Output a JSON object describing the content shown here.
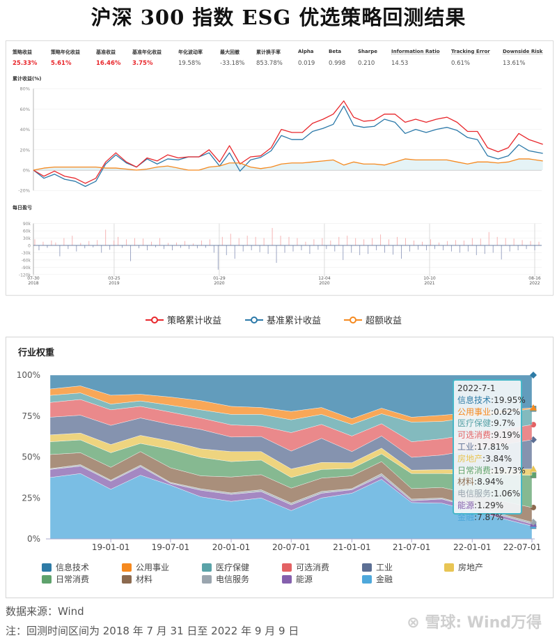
{
  "title": "沪深 300 指数 ESG 优选策略回测结果",
  "metrics": [
    {
      "label": "策略收益",
      "value": "25.33%",
      "highlight": true
    },
    {
      "label": "策略年化收益",
      "value": "5.61%",
      "highlight": true
    },
    {
      "label": "基准收益",
      "value": "16.46%",
      "highlight": true
    },
    {
      "label": "基准年化收益",
      "value": "3.75%",
      "highlight": true
    },
    {
      "label": "年化波动率",
      "value": "19.58%",
      "highlight": false
    },
    {
      "label": "最大回撤",
      "value": "-33.18%",
      "highlight": false
    },
    {
      "label": "累计换手率",
      "value": "853.78%",
      "highlight": false
    },
    {
      "label": "Alpha",
      "value": "0.019",
      "highlight": false
    },
    {
      "label": "Beta",
      "value": "0.998",
      "highlight": false
    },
    {
      "label": "Sharpe",
      "value": "0.210",
      "highlight": false
    },
    {
      "label": "Information Ratio",
      "value": "14.53",
      "highlight": false
    },
    {
      "label": "Tracking Error",
      "value": "0.61%",
      "highlight": false
    },
    {
      "label": "Downside Risk",
      "value": "13.61%",
      "highlight": false
    }
  ],
  "legend": [
    {
      "label": "策略累计收益",
      "color": "#e8262b"
    },
    {
      "label": "基准累计收益",
      "color": "#2a78a8"
    },
    {
      "label": "超额收益",
      "color": "#f5891f"
    }
  ],
  "chart_data": [
    {
      "type": "line",
      "title": "累计收益(%)",
      "ylim": [
        -20,
        80
      ],
      "yticks": [
        "80%",
        "60%",
        "40%",
        "20%",
        "0%",
        "-20%"
      ],
      "ytick_values": [
        80,
        60,
        40,
        20,
        0,
        -20
      ],
      "grid": true,
      "x": [
        "2018-07-30",
        "2018-08-30",
        "2018-09-30",
        "2018-10-30",
        "2018-11-30",
        "2018-12-30",
        "2019-01-30",
        "2019-02-28",
        "2019-03-30",
        "2019-04-30",
        "2019-05-30",
        "2019-06-30",
        "2019-07-30",
        "2019-08-30",
        "2019-09-30",
        "2019-10-30",
        "2019-11-30",
        "2019-12-30",
        "2020-01-30",
        "2020-02-28",
        "2020-03-30",
        "2020-04-30",
        "2020-05-30",
        "2020-06-30",
        "2020-07-30",
        "2020-08-30",
        "2020-09-30",
        "2020-10-30",
        "2020-11-30",
        "2020-12-30",
        "2021-01-30",
        "2021-02-28",
        "2021-03-30",
        "2021-04-30",
        "2021-05-30",
        "2021-06-30",
        "2021-07-30",
        "2021-08-30",
        "2021-09-30",
        "2021-10-30",
        "2021-11-30",
        "2021-12-30",
        "2022-01-30",
        "2022-02-28",
        "2022-03-30",
        "2022-04-30",
        "2022-05-30",
        "2022-06-30",
        "2022-07-30",
        "2022-09-09"
      ],
      "series": [
        {
          "name": "策略累计收益",
          "color": "#e8262b",
          "values": [
            0,
            -6,
            -1,
            -6,
            -8,
            -13,
            -8,
            8,
            17,
            8,
            3,
            12,
            9,
            15,
            12,
            13,
            13,
            20,
            8,
            24,
            6,
            13,
            14,
            22,
            40,
            37,
            37,
            46,
            50,
            55,
            68,
            52,
            48,
            49,
            55,
            55,
            47,
            50,
            47,
            50,
            52,
            47,
            38,
            38,
            22,
            18,
            22,
            36,
            30,
            25.33
          ]
        },
        {
          "name": "基准累计收益",
          "color": "#2a78a8",
          "values": [
            0,
            -8,
            -4,
            -9,
            -11,
            -16,
            -11,
            6,
            15,
            7,
            3,
            11,
            6,
            11,
            10,
            13,
            13,
            17,
            4,
            17,
            -1,
            10,
            12.5,
            19,
            34,
            30,
            30,
            38,
            41,
            45,
            63,
            44,
            42,
            43,
            50,
            47,
            36,
            40,
            37,
            40,
            42,
            39,
            32,
            30,
            14,
            11,
            14,
            25,
            19,
            16.46
          ]
        },
        {
          "name": "超额收益",
          "color": "#f5891f",
          "values": [
            0,
            2,
            3,
            3,
            3,
            3,
            3,
            2,
            2,
            1,
            0,
            1,
            3,
            4,
            2,
            0,
            0,
            3,
            4,
            7,
            7,
            3,
            1.5,
            3,
            6,
            7,
            7,
            8,
            9,
            10,
            5,
            8,
            6,
            6,
            5,
            8,
            11,
            10,
            10,
            10,
            10,
            8,
            6,
            8,
            8,
            7,
            8,
            11,
            11,
            9
          ]
        }
      ]
    },
    {
      "type": "bar",
      "title": "每日盈亏",
      "ylim": [
        -120,
        90
      ],
      "yticks": [
        "90k",
        "60k",
        "30k",
        "0",
        "-30k",
        "-60k",
        "-90k",
        "-120k"
      ],
      "ytick_values": [
        90,
        60,
        30,
        0,
        -30,
        -60,
        -90,
        -120
      ],
      "xticks": [
        {
          "date": "2018-07-30",
          "md": "07-30",
          "year": "2018"
        },
        {
          "date": "2019-03-25",
          "md": "03-25",
          "year": "2019"
        },
        {
          "date": "2020-01-29",
          "md": "01-29",
          "year": "2020"
        },
        {
          "date": "2020-12-04",
          "md": "12-04",
          "year": "2020"
        },
        {
          "date": "2021-10-10",
          "md": "10-10",
          "year": "2021"
        },
        {
          "date": "2022-08-16",
          "md": "08-16",
          "year": "2022"
        }
      ],
      "positive_color": "#f3a3a3",
      "negative_color": "#8590b6",
      "values_k": [
        25,
        -20,
        15,
        -10,
        20,
        12,
        -45,
        30,
        -15,
        40,
        -25,
        10,
        -12,
        18,
        -8,
        22,
        -30,
        65,
        -18,
        20,
        35,
        -10,
        25,
        -65,
        30,
        -12,
        28,
        -20,
        15,
        -8,
        30,
        -15,
        10,
        -20,
        12,
        -10,
        18,
        -15,
        8,
        -12,
        20,
        -10,
        25,
        -30,
        -100,
        35,
        -40,
        48,
        -55,
        30,
        -25,
        40,
        -20,
        35,
        -28,
        30,
        -35,
        72,
        -72,
        40,
        -30,
        35,
        -25,
        30,
        -20,
        15,
        -35,
        25,
        -18,
        30,
        -15,
        20,
        -25,
        35,
        -60,
        40,
        -30,
        30,
        -40,
        25,
        -35,
        30,
        -20,
        45,
        -30,
        25,
        -38,
        35,
        -55,
        30,
        -25,
        20,
        -18,
        15,
        -20,
        25,
        -15,
        12,
        -20,
        18,
        -25,
        22,
        -30,
        20,
        -25,
        30,
        -40,
        28,
        -35,
        55,
        -30,
        35,
        -58,
        30,
        -25,
        28,
        -20,
        22,
        -15,
        18,
        -20,
        15
      ]
    },
    {
      "type": "area",
      "stacked": true,
      "title": "行业权重",
      "ylim": [
        0,
        100
      ],
      "yticks": [
        "100%",
        "75%",
        "50%",
        "25%",
        "0%"
      ],
      "ytick_values": [
        100,
        75,
        50,
        25,
        0
      ],
      "x": [
        "2018-07-01",
        "2018-10-01",
        "2019-01-01",
        "2019-04-01",
        "2019-07-01",
        "2019-10-01",
        "2020-01-01",
        "2020-04-01",
        "2020-07-01",
        "2020-10-01",
        "2021-01-01",
        "2021-04-01",
        "2021-07-01",
        "2021-10-01",
        "2022-01-01",
        "2022-04-01",
        "2022-07-01"
      ],
      "xticks": [
        {
          "date": "2019-01-01",
          "label": "19-01-01"
        },
        {
          "date": "2019-07-01",
          "label": "19-07-01"
        },
        {
          "date": "2020-01-01",
          "label": "20-01-01"
        },
        {
          "date": "2020-07-01",
          "label": "20-07-01"
        },
        {
          "date": "2021-01-01",
          "label": "21-01-01"
        },
        {
          "date": "2021-07-01",
          "label": "21-07-01"
        },
        {
          "date": "2022-01-01",
          "label": "22-01-01"
        },
        {
          "date": "2022-07-01",
          "label": "22-07-01"
        }
      ],
      "legend_placement": "bottom",
      "series": [
        {
          "name": "金融",
          "color": "#4ea8db",
          "values": [
            37.5,
            39.9,
            30.3,
            38.9,
            32.8,
            25.7,
            22.9,
            25.0,
            17.3,
            25.0,
            27.9,
            36.4,
            22.2,
            21.8,
            17.2,
            12.5,
            7.87
          ]
        },
        {
          "name": "能源",
          "color": "#8560ad",
          "values": [
            4.9,
            4.5,
            4.9,
            5.2,
            1.1,
            4.0,
            4.3,
            3.9,
            3.5,
            2.9,
            2.1,
            2.1,
            1.1,
            2.5,
            2.1,
            1.7,
            1.29
          ]
        },
        {
          "name": "电信服务",
          "color": "#9aa5ae",
          "values": [
            0.5,
            0.9,
            0.7,
            0.9,
            0.6,
            0.9,
            0.9,
            1.1,
            1.1,
            1.1,
            0.7,
            1.4,
            1.0,
            0.7,
            0.8,
            0.9,
            1.06
          ]
        },
        {
          "name": "材料",
          "color": "#8c6a4f",
          "values": [
            8.6,
            7.3,
            7.8,
            8.3,
            8.9,
            7.9,
            9.7,
            9.2,
            9.1,
            8.1,
            7.8,
            7.3,
            6.4,
            6.4,
            7.2,
            8.1,
            8.94
          ]
        },
        {
          "name": "日常消费",
          "color": "#5ea26c",
          "values": [
            7.8,
            7.8,
            8.9,
            5.0,
            11.3,
            11.3,
            9.4,
            8.9,
            6.5,
            5.3,
            4.5,
            4.7,
            9.2,
            8.5,
            12.2,
            16.0,
            19.73
          ]
        },
        {
          "name": "房地产",
          "color": "#e8c554",
          "values": [
            4.2,
            4.2,
            5.0,
            4.9,
            5.0,
            5.2,
            6.1,
            5.2,
            5.2,
            4.3,
            3.5,
            3.5,
            2.1,
            2.4,
            2.9,
            3.4,
            3.84
          ]
        },
        {
          "name": "工业",
          "color": "#5c6f94",
          "values": [
            10.8,
            10.9,
            11.7,
            10.6,
            10.2,
            11.8,
            8.9,
            9.2,
            10.9,
            14.7,
            6.8,
            7.4,
            7.8,
            8.9,
            11.9,
            14.8,
            17.81
          ]
        },
        {
          "name": "可选消费",
          "color": "#e36264",
          "values": [
            9.0,
            9.6,
            9.5,
            7.1,
            7.5,
            7.0,
            7.4,
            6.4,
            11.3,
            8.5,
            9.5,
            7.5,
            9.5,
            9.9,
            9.7,
            9.4,
            9.19
          ]
        },
        {
          "name": "医疗保健",
          "color": "#5aa3a8",
          "values": [
            4.3,
            4.0,
            3.5,
            3.3,
            4.2,
            5.0,
            6.4,
            7.1,
            7.8,
            6.1,
            7.1,
            6.1,
            12.0,
            10.6,
            10.3,
            10.0,
            9.7
          ]
        },
        {
          "name": "公用事业",
          "color": "#f5891f",
          "values": [
            3.9,
            4.3,
            5.4,
            4.1,
            5.0,
            5.6,
            4.9,
            4.2,
            5.1,
            4.2,
            3.5,
            3.4,
            3.0,
            3.8,
            2.7,
            1.7,
            0.62
          ]
        },
        {
          "name": "信息技术",
          "color": "#2e7ba6",
          "values": [
            8.5,
            6.6,
            12.3,
            11.7,
            13.4,
            15.6,
            19.1,
            19.8,
            22.2,
            19.8,
            26.6,
            20.2,
            25.7,
            24.5,
            23.0,
            21.5,
            19.95
          ]
        }
      ],
      "tooltip": {
        "date": "2022-7-1",
        "rows": [
          {
            "name": "信息技术",
            "value": "19.95%",
            "color": "#2e7ba6"
          },
          {
            "name": "公用事业",
            "value": "0.62%",
            "color": "#f5891f"
          },
          {
            "name": "医疗保健",
            "value": "9.7%",
            "color": "#5aa3a8"
          },
          {
            "name": "可选消费",
            "value": "9.19%",
            "color": "#e36264"
          },
          {
            "name": "工业",
            "value": "17.81%",
            "color": "#5c6f94"
          },
          {
            "name": "房地产",
            "value": "3.84%",
            "color": "#e8c554"
          },
          {
            "name": "日常消费",
            "value": "19.73%",
            "color": "#5ea26c"
          },
          {
            "name": "材料",
            "value": "8.94%",
            "color": "#8c6a4f"
          },
          {
            "name": "电信服务",
            "value": "1.06%",
            "color": "#9aa5ae"
          },
          {
            "name": "能源",
            "value": "1.29%",
            "color": "#8560ad"
          },
          {
            "name": "金融",
            "value": "7.87%",
            "color": "#4ea8db"
          }
        ]
      }
    }
  ],
  "weight_legend": [
    "信息技术",
    "公用事业",
    "医疗保健",
    "可选消费",
    "工业",
    "房地产",
    "日常消费",
    "材料",
    "电信服务",
    "能源",
    "金融"
  ],
  "footer": {
    "source": "数据来源：Wind",
    "note": "注：回测时间区间为 2018 年 7 月 31 日至 2022 年 9 月 9 日",
    "watermark": "雪球: Wind万得"
  }
}
